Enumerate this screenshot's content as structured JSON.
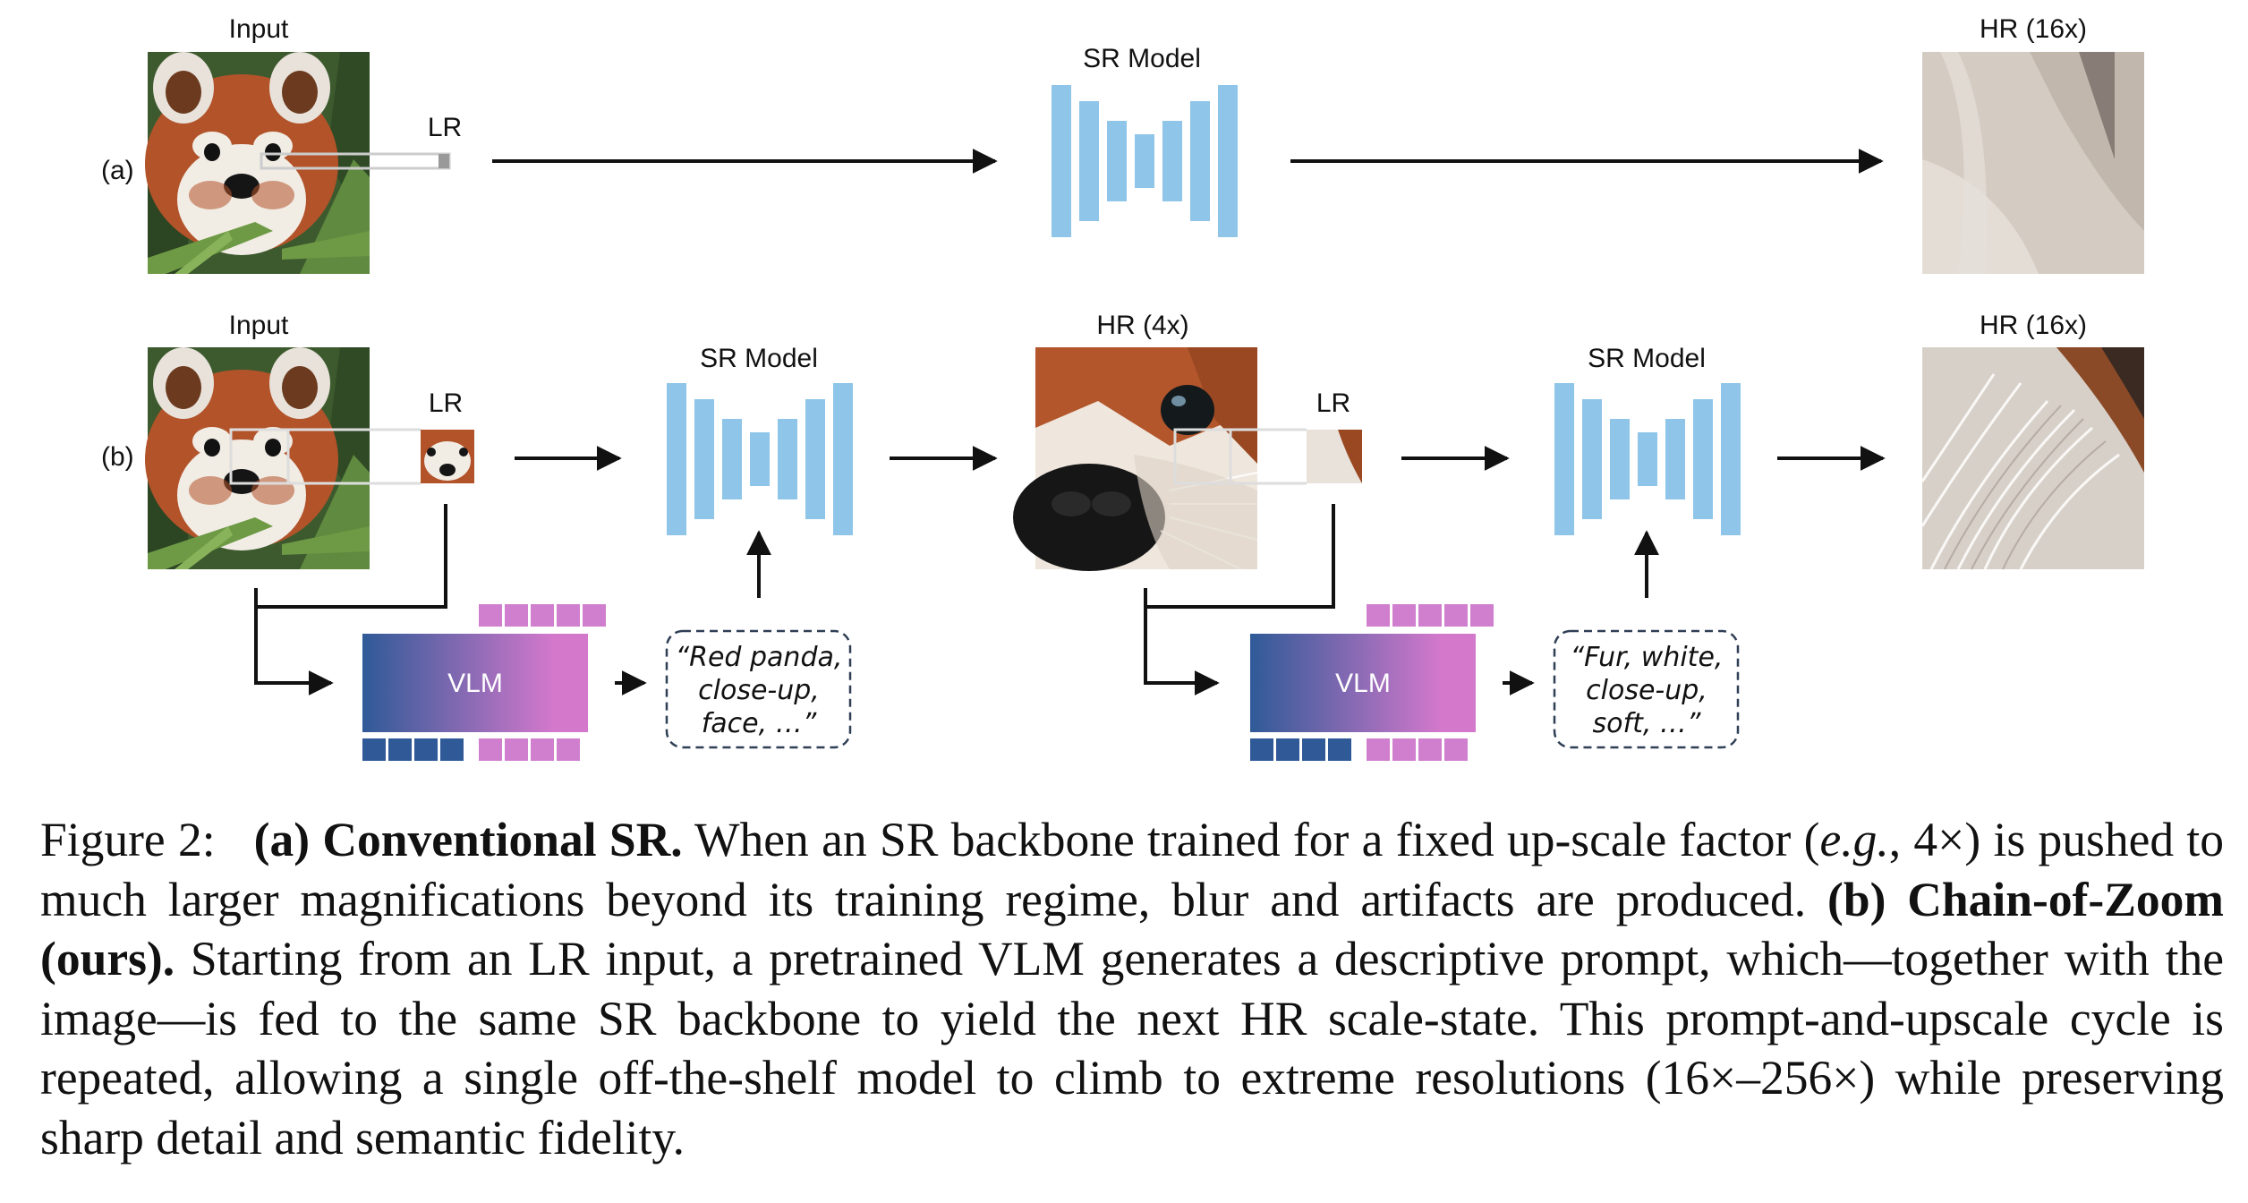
{
  "figure": {
    "row_a": {
      "row_label": "(a)",
      "input_label": "Input",
      "lr_label": "LR",
      "sr_label": "SR Model",
      "output_label": "HR (16x)"
    },
    "row_b": {
      "row_label": "(b)",
      "input_label": "Input",
      "lr_label_1": "LR",
      "sr_label_1": "SR Model",
      "mid_label": "HR (4x)",
      "lr_label_2": "LR",
      "sr_label_2": "SR Model",
      "output_label": "HR (16x)",
      "vlm_label_1": "VLM",
      "vlm_label_2": "VLM",
      "prompt_1": [
        "“Red panda,",
        "close-up,",
        "face, …”"
      ],
      "prompt_2": [
        "“Fur, white,",
        "close-up,",
        "soft, …”"
      ]
    },
    "colors": {
      "sr_block": "#8ec5e8",
      "vlm_gradient_start": "#2f5a97",
      "vlm_gradient_end": "#d478cc",
      "token_pink": "#d07fcf",
      "token_blue": "#2f5a97"
    }
  },
  "caption": {
    "figure_no": "Figure 2:",
    "part_a_title": "(a) Conventional SR.",
    "part_a_text_1": "When an SR backbone trained for a fixed up-scale factor (",
    "part_a_eg": "e.g.",
    "part_a_text_2": ", 4×) is pushed to much larger magnifications beyond its training regime, blur and artifacts are produced.",
    "part_b_title": "(b) Chain-of-Zoom (ours).",
    "part_b_text": "Starting from an LR input, a pretrained VLM generates a descriptive prompt, which—together with the image—is fed to the same SR backbone to yield the next HR scale-state. This prompt-and-upscale cycle is repeated, allowing a single off-the-shelf model to climb to extreme resolutions (16×–256×) while preserving sharp detail and semantic fidelity."
  }
}
